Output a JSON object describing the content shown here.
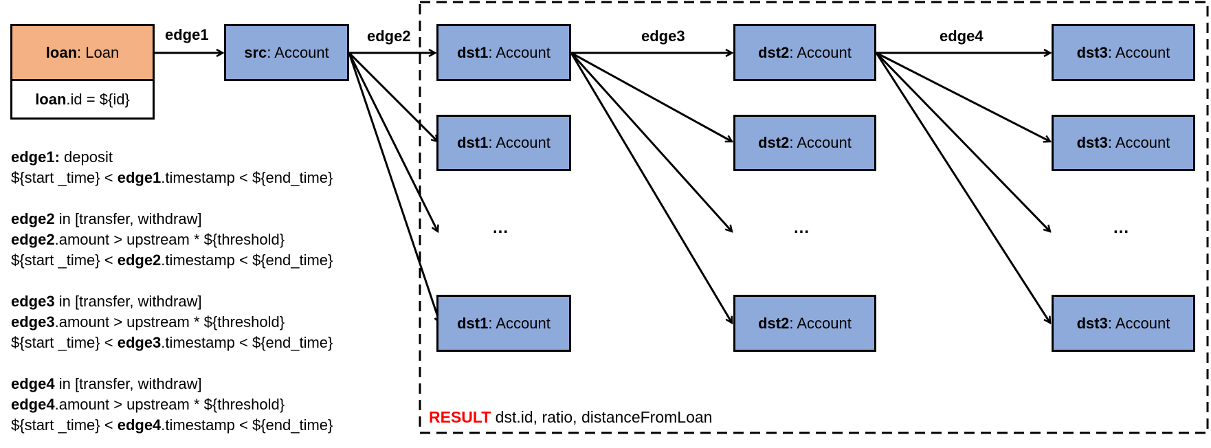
{
  "loan": {
    "var": "loan",
    "type": " : Loan",
    "prop_var": "loan",
    "prop_text": ".id = ${id}"
  },
  "src": {
    "var": "src",
    "type": " : Account"
  },
  "dst1": {
    "var": "dst1",
    "type": " : Account"
  },
  "dst2": {
    "var": "dst2",
    "type": " : Account"
  },
  "dst3": {
    "var": "dst3",
    "type": " : Account"
  },
  "edge_labels": {
    "e1": "edge1",
    "e2": "edge2",
    "e3": "edge3",
    "e4": "edge4"
  },
  "ellipsis": "...",
  "constraints": {
    "e1": {
      "l1_bold": "edge1:",
      "l1_rest": " deposit",
      "l2_pre": "${start _time} < ",
      "l2_bold": "edge1",
      "l2_post": ".timestamp < ${end_time}"
    },
    "e2": {
      "l1_bold": "edge2",
      "l1_rest": " in [transfer, withdraw]",
      "l2_bold": "edge2",
      "l2_rest": ".amount > upstream * ${threshold}",
      "l3_pre": "${start _time} < ",
      "l3_bold": "edge2",
      "l3_post": ".timestamp < ${end_time}"
    },
    "e3": {
      "l1_bold": "edge3",
      "l1_rest": " in [transfer, withdraw]",
      "l2_bold": "edge3",
      "l2_rest": ".amount > upstream * ${threshold}",
      "l3_pre": "${start _time} < ",
      "l3_bold": "edge3",
      "l3_post": ".timestamp < ${end_time}"
    },
    "e4": {
      "l1_bold": "edge4",
      "l1_rest": " in [transfer, withdraw]",
      "l2_bold": "edge4",
      "l2_rest": ".amount > upstream * ${threshold}",
      "l3_pre": "${start _time} < ",
      "l3_bold": "edge4",
      "l3_post": ".timestamp < ${end_time}"
    }
  },
  "result": {
    "keyword": "RESULT",
    "fields": " dst.id, ratio, distanceFromLoan"
  },
  "colors": {
    "account": "#8eaadb",
    "loan": "#f4b183",
    "result_keyword": "#ff0000"
  }
}
